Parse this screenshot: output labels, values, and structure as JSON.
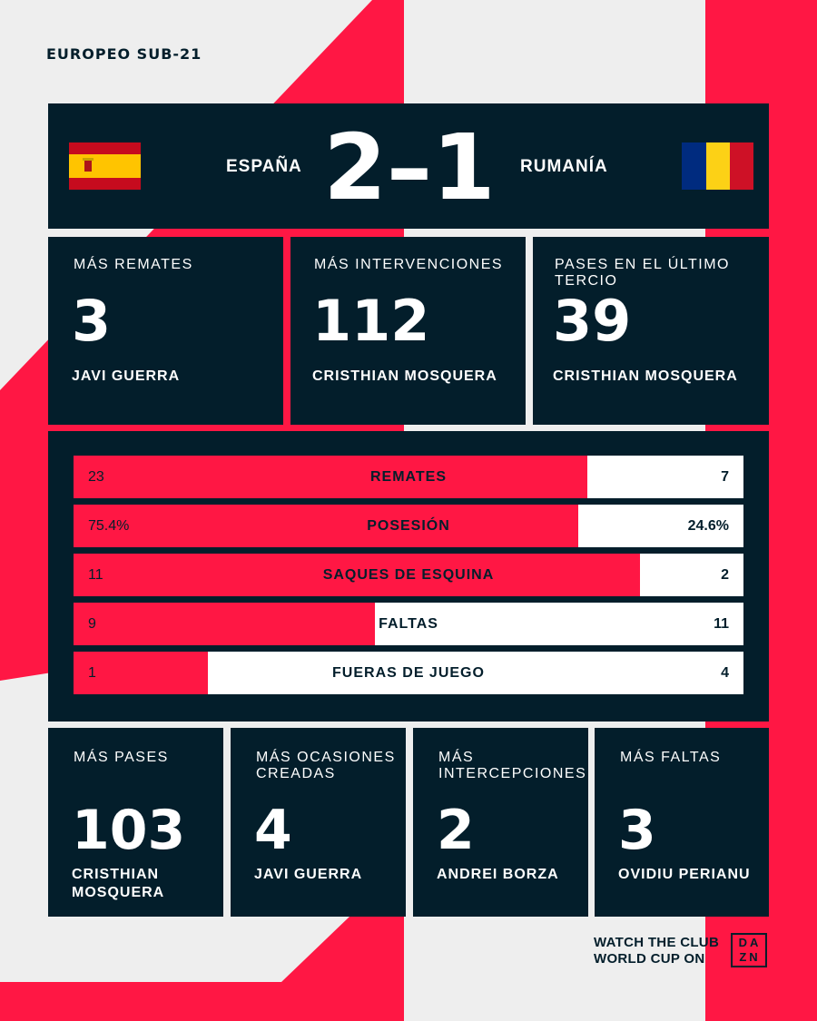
{
  "competition": "EUROPEO SUB-21",
  "match": {
    "home_team": "ESPAÑA",
    "away_team": "RUMANÍA",
    "score": "2–1"
  },
  "top_stats": [
    {
      "label": "MÁS REMATES",
      "value": "3",
      "player": "JAVI GUERRA"
    },
    {
      "label": "MÁS INTERVENCIONES",
      "value": "112",
      "player": "CRISTHIAN MOSQUERA"
    },
    {
      "label": "PASES EN EL ÚLTIMO TERCIO",
      "value": "39",
      "player": "CRISTHIAN MOSQUERA"
    }
  ],
  "comparison": [
    {
      "label": "REMATES",
      "home": "23",
      "away": "7",
      "home_share": 0.767
    },
    {
      "label": "POSESIÓN",
      "home": "75.4%",
      "away": "24.6%",
      "home_share": 0.754
    },
    {
      "label": "SAQUES DE ESQUINA",
      "home": "11",
      "away": "2",
      "home_share": 0.846
    },
    {
      "label": "FALTAS",
      "home": "9",
      "away": "11",
      "home_share": 0.45
    },
    {
      "label": "FUERAS DE JUEGO",
      "home": "1",
      "away": "4",
      "home_share": 0.2
    }
  ],
  "bottom_stats": [
    {
      "label": "MÁS PASES",
      "value": "103",
      "player": "CRISTHIAN MOSQUERA"
    },
    {
      "label": "MÁS OCASIONES CREADAS",
      "value": "4",
      "player": "JAVI GUERRA"
    },
    {
      "label": "MÁS INTERCEPCIONES",
      "value": "2",
      "player": "ANDREI BORZA"
    },
    {
      "label": "MÁS FALTAS",
      "value": "3",
      "player": "OVIDIU PERIANU"
    }
  ],
  "footer": {
    "promo": "WATCH THE CLUB WORLD CUP ON",
    "logo_text": "DA ZN"
  },
  "colors": {
    "panel": "#031e2b",
    "accent": "#ff1744",
    "background": "#eeeeee"
  }
}
